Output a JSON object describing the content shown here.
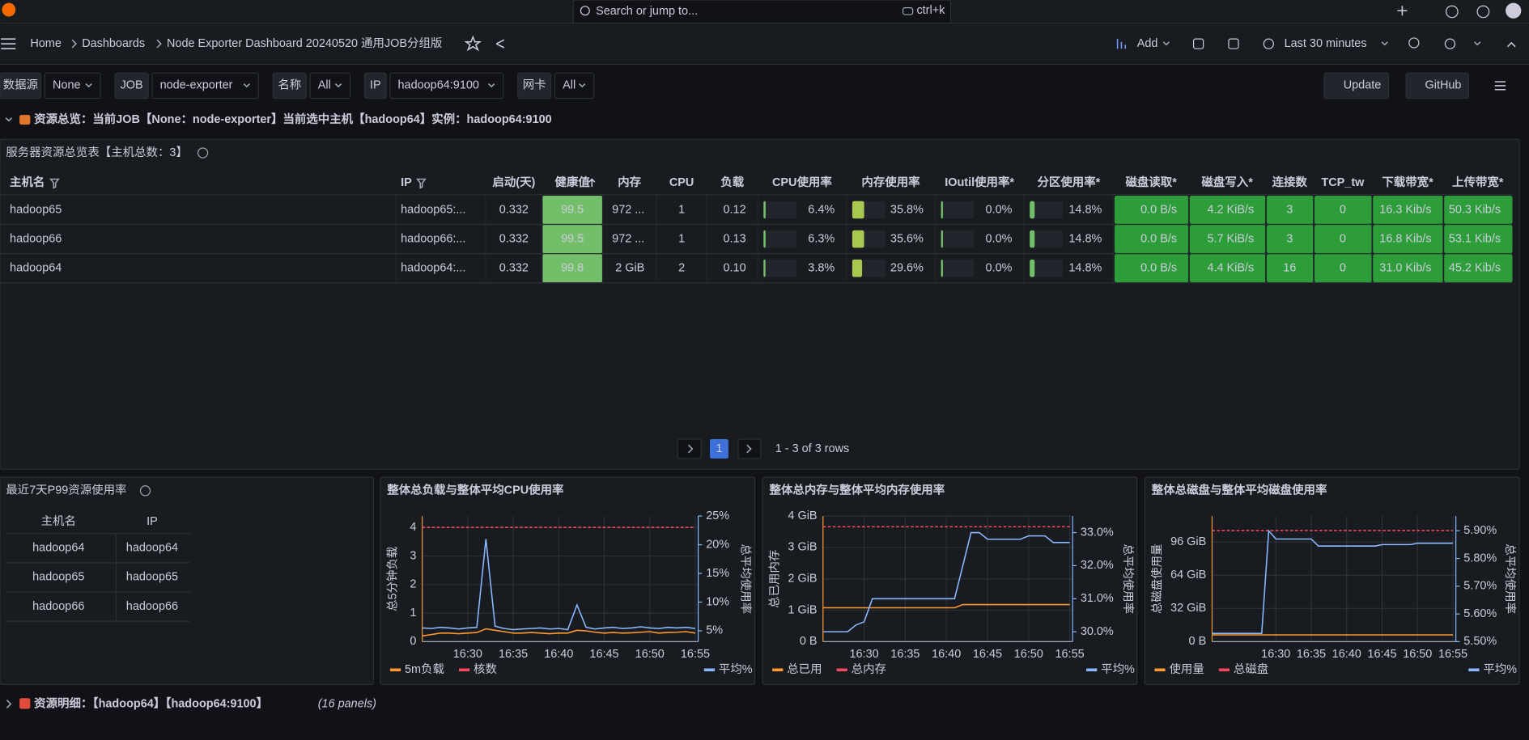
{
  "topbar": {
    "search": "Search or jump to...",
    "shortcut": "ctrl+k"
  },
  "breadcrumbs": [
    "Home",
    "Dashboards",
    "Node Exporter Dashboard 20240520 通用JOB分组版"
  ],
  "toolbar": {
    "add": "Add",
    "time": "Last 30 minutes"
  },
  "variables": [
    {
      "label": "数据源",
      "value": "None"
    },
    {
      "label": "JOB",
      "value": "node-exporter"
    },
    {
      "label": "名称",
      "value": "All"
    },
    {
      "label": "IP",
      "value": "hadoop64:9100"
    },
    {
      "label": "网卡",
      "value": "All"
    }
  ],
  "buttons": [
    "Update",
    "GitHub"
  ],
  "row1": {
    "title": "资源总览：当前JOB【None：node-exporter】当前选中主机【hadoop64】实例：hadoop64:9100"
  },
  "table": {
    "title": "服务器资源总览表【主机总数：3】",
    "columns": [
      "主机名",
      "IP",
      "启动(天)",
      "健康值",
      "内存",
      "CPU",
      "负载",
      "CPU使用率",
      "内存使用率",
      "IOutil使用率*",
      "分区使用率*",
      "磁盘读取*",
      "磁盘写入*",
      "连接数",
      "TCP_tw",
      "下载带宽*",
      "上传带宽*"
    ],
    "rows": [
      [
        "hadoop65",
        "hadoop65:...",
        "0.332",
        "99.5",
        "972 ...",
        "1",
        "0.12",
        "6.4%",
        "35.8%",
        "0.0%",
        "14.8%",
        "0.0 B/s",
        "4.2 KiB/s",
        "3",
        "0",
        "16.3 Kib/s",
        "50.3 Kib/s"
      ],
      [
        "hadoop66",
        "hadoop66:...",
        "0.332",
        "99.5",
        "972 ...",
        "1",
        "0.13",
        "6.3%",
        "35.6%",
        "0.0%",
        "14.8%",
        "0.0 B/s",
        "5.7 KiB/s",
        "3",
        "0",
        "16.8 Kib/s",
        "53.1 Kib/s"
      ],
      [
        "hadoop64",
        "hadoop64:...",
        "0.332",
        "99.8",
        "2 GiB",
        "2",
        "0.10",
        "3.8%",
        "29.6%",
        "0.0%",
        "14.8%",
        "0.0 B/s",
        "4.4 KiB/s",
        "16",
        "0",
        "31.0 Kib/s",
        "45.2 Kib/s"
      ]
    ],
    "pagination": {
      "page": "1",
      "summary": "1 - 3 of 3 rows"
    }
  },
  "p99": {
    "title": "最近7天P99资源使用率",
    "columns": [
      "主机名",
      "IP"
    ],
    "rows": [
      [
        "hadoop64",
        "hadoop64"
      ],
      [
        "hadoop65",
        "hadoop65"
      ],
      [
        "hadoop66",
        "hadoop66"
      ]
    ]
  },
  "charts": [
    {
      "type": "line",
      "title": "整体总负载与整体平均CPU使用率",
      "ylabel": "总5分钟负载",
      "y2label": "总平均使用率",
      "x": [
        "16:25",
        "16:26",
        "16:27",
        "16:28",
        "16:29",
        "16:30",
        "16:31",
        "16:32",
        "16:33",
        "16:34",
        "16:35",
        "16:36",
        "16:37",
        "16:38",
        "16:39",
        "16:40",
        "16:41",
        "16:42",
        "16:43",
        "16:44",
        "16:45",
        "16:46",
        "16:47",
        "16:48",
        "16:49",
        "16:50",
        "16:51",
        "16:52",
        "16:53",
        "16:54",
        "16:55"
      ],
      "xlim": [
        "16:25",
        "16:55"
      ],
      "xticks": [
        "16:30",
        "16:35",
        "16:40",
        "16:45",
        "16:50",
        "16:55"
      ],
      "ylim": [
        0,
        4.4
      ],
      "yticks": [
        0,
        1,
        2,
        3,
        4
      ],
      "y2lim": [
        3.1,
        25
      ],
      "y2ticks": [
        {
          "value": 5,
          "label": "5%"
        },
        {
          "value": 10,
          "label": "10%"
        },
        {
          "value": 15,
          "label": "15%"
        },
        {
          "value": 20,
          "label": "20%"
        },
        {
          "value": 25,
          "label": "25%"
        }
      ],
      "series": [
        {
          "name": "5m负载",
          "color": "#ff9830",
          "values": [
            0.2,
            0.25,
            0.3,
            0.3,
            0.28,
            0.3,
            0.32,
            0.45,
            0.4,
            0.35,
            0.3,
            0.3,
            0.32,
            0.3,
            0.28,
            0.3,
            0.3,
            0.4,
            0.38,
            0.33,
            0.3,
            0.32,
            0.3,
            0.31,
            0.33,
            0.35,
            0.3,
            0.32,
            0.33,
            0.35,
            0.3
          ]
        },
        {
          "name": "核数",
          "color": "#f2495c",
          "style": "dashed",
          "values": [
            4,
            4,
            4,
            4,
            4,
            4,
            4,
            4,
            4,
            4,
            4,
            4,
            4,
            4,
            4,
            4,
            4,
            4,
            4,
            4,
            4,
            4,
            4,
            4,
            4,
            4,
            4,
            4,
            4,
            4,
            4
          ]
        },
        {
          "name": "平均%",
          "color": "#8ab8ff",
          "axis": "y2",
          "values": [
            5.5,
            5.4,
            5.6,
            5.5,
            5.3,
            5.5,
            5.6,
            21,
            5.8,
            5.4,
            5.2,
            5.3,
            5.4,
            5.5,
            5.3,
            5.4,
            5.2,
            9.5,
            5.6,
            5.3,
            5.5,
            5.6,
            5.4,
            5.5,
            5.7,
            5.5,
            5.4,
            5.6,
            5.5,
            5.6,
            5.4
          ]
        }
      ]
    },
    {
      "type": "line",
      "title": "整体总内存与整体平均内存使用率",
      "ylabel": "总已用内存",
      "y2label": "总平均使用率",
      "x": [
        "16:25",
        "16:26",
        "16:27",
        "16:28",
        "16:29",
        "16:30",
        "16:31",
        "16:32",
        "16:33",
        "16:34",
        "16:35",
        "16:36",
        "16:37",
        "16:38",
        "16:39",
        "16:40",
        "16:41",
        "16:42",
        "16:43",
        "16:44",
        "16:45",
        "16:46",
        "16:47",
        "16:48",
        "16:49",
        "16:50",
        "16:51",
        "16:52",
        "16:53",
        "16:54",
        "16:55"
      ],
      "xlim": [
        "16:25",
        "16:55"
      ],
      "xticks": [
        "16:30",
        "16:35",
        "16:40",
        "16:45",
        "16:50",
        "16:55"
      ],
      "ylim": [
        0,
        4
      ],
      "yticks": [
        {
          "value": 0,
          "label": "0 B"
        },
        {
          "value": 1,
          "label": "1 GiB"
        },
        {
          "value": 2,
          "label": "2 GiB"
        },
        {
          "value": 3,
          "label": "3 GiB"
        },
        {
          "value": 4,
          "label": "4 GiB"
        }
      ],
      "y2lim": [
        29.7,
        33.5
      ],
      "y2ticks": [
        {
          "value": 30,
          "label": "30.0%"
        },
        {
          "value": 31,
          "label": "31.0%"
        },
        {
          "value": 32,
          "label": "32.0%"
        },
        {
          "value": 33,
          "label": "33.0%"
        }
      ],
      "series": [
        {
          "name": "总已用",
          "color": "#ff9830",
          "values": [
            1.08,
            1.08,
            1.08,
            1.08,
            1.08,
            1.08,
            1.08,
            1.08,
            1.08,
            1.08,
            1.08,
            1.08,
            1.08,
            1.08,
            1.08,
            1.08,
            1.08,
            1.18,
            1.18,
            1.18,
            1.18,
            1.18,
            1.18,
            1.18,
            1.18,
            1.18,
            1.18,
            1.18,
            1.18,
            1.18,
            1.18
          ]
        },
        {
          "name": "总内存",
          "color": "#f2495c",
          "style": "dashed",
          "values": [
            3.66,
            3.66,
            3.66,
            3.66,
            3.66,
            3.66,
            3.66,
            3.66,
            3.66,
            3.66,
            3.66,
            3.66,
            3.66,
            3.66,
            3.66,
            3.66,
            3.66,
            3.66,
            3.66,
            3.66,
            3.66,
            3.66,
            3.66,
            3.66,
            3.66,
            3.66,
            3.66,
            3.66,
            3.66,
            3.66,
            3.66
          ]
        },
        {
          "name": "平均%",
          "color": "#8ab8ff",
          "axis": "y2",
          "values": [
            30.0,
            30.0,
            30.0,
            30.0,
            30.2,
            30.3,
            31.0,
            31.0,
            31.0,
            31.0,
            31.0,
            31.0,
            31.0,
            31.0,
            31.0,
            31.0,
            31.0,
            32.0,
            33.0,
            33.0,
            32.8,
            32.8,
            32.8,
            32.8,
            32.8,
            32.9,
            32.9,
            32.9,
            32.7,
            32.7,
            32.7
          ]
        }
      ]
    },
    {
      "type": "line",
      "title": "整体总磁盘与整体平均磁盘使用率",
      "ylabel": "总磁盘使用量",
      "y2label": "总平均使用率",
      "x": [
        "16:21",
        "16:22",
        "16:23",
        "16:24",
        "16:25",
        "16:26",
        "16:27",
        "16:28",
        "16:29",
        "16:30",
        "16:31",
        "16:32",
        "16:33",
        "16:34",
        "16:35",
        "16:36",
        "16:37",
        "16:38",
        "16:39",
        "16:40",
        "16:41",
        "16:42",
        "16:43",
        "16:44",
        "16:45",
        "16:46",
        "16:47",
        "16:48",
        "16:49",
        "16:50",
        "16:51",
        "16:52",
        "16:53",
        "16:54",
        "16:55"
      ],
      "xlim": [
        "16:21",
        "16:55"
      ],
      "xticks": [
        "16:30",
        "16:35",
        "16:40",
        "16:45",
        "16:50",
        "16:55"
      ],
      "ylim": [
        0,
        121
      ],
      "yticks": [
        {
          "value": 0,
          "label": "0 B"
        },
        {
          "value": 32,
          "label": "32 GiB"
        },
        {
          "value": 64,
          "label": "64 GiB"
        },
        {
          "value": 96,
          "label": "96 GiB"
        }
      ],
      "y2lim": [
        5.5,
        5.953
      ],
      "y2ticks": [
        {
          "value": 5.5,
          "label": "5.50%"
        },
        {
          "value": 5.6,
          "label": "5.60%"
        },
        {
          "value": 5.7,
          "label": "5.70%"
        },
        {
          "value": 5.8,
          "label": "5.80%"
        },
        {
          "value": 5.9,
          "label": "5.90%"
        }
      ],
      "series": [
        {
          "name": "使用量",
          "color": "#ff9830",
          "values": [
            6.6,
            6.6,
            6.6,
            6.6,
            6.6,
            6.6,
            6.6,
            6.6,
            6.6,
            6.6,
            6.6,
            6.6,
            6.6,
            6.6,
            6.6,
            6.6,
            6.6,
            6.6,
            6.6,
            6.6,
            6.6,
            6.6,
            6.6,
            6.6,
            6.6,
            6.6,
            6.6,
            6.6,
            6.6,
            6.6,
            6.6,
            6.6,
            6.6,
            6.6,
            6.6
          ]
        },
        {
          "name": "总磁盘",
          "color": "#f2495c",
          "style": "dashed",
          "values": [
            107,
            107,
            107,
            107,
            107,
            107,
            107,
            107,
            107,
            107,
            107,
            107,
            107,
            107,
            107,
            107,
            107,
            107,
            107,
            107,
            107,
            107,
            107,
            107,
            107,
            107,
            107,
            107,
            107,
            107,
            107,
            107,
            107,
            107,
            107
          ]
        },
        {
          "name": "平均%",
          "color": "#8ab8ff",
          "axis": "y2",
          "values": [
            5.53,
            5.53,
            5.53,
            5.53,
            5.53,
            5.53,
            5.53,
            5.53,
            5.9,
            5.87,
            5.87,
            5.87,
            5.87,
            5.87,
            5.87,
            5.845,
            5.845,
            5.845,
            5.845,
            5.845,
            5.845,
            5.845,
            5.845,
            5.845,
            5.85,
            5.85,
            5.85,
            5.85,
            5.85,
            5.855,
            5.855,
            5.855,
            5.855,
            5.855,
            5.855
          ]
        }
      ]
    }
  ],
  "row2": {
    "title": "资源明细：【hadoop64】【hadoop64:9100】",
    "count": "(16 panels)"
  }
}
